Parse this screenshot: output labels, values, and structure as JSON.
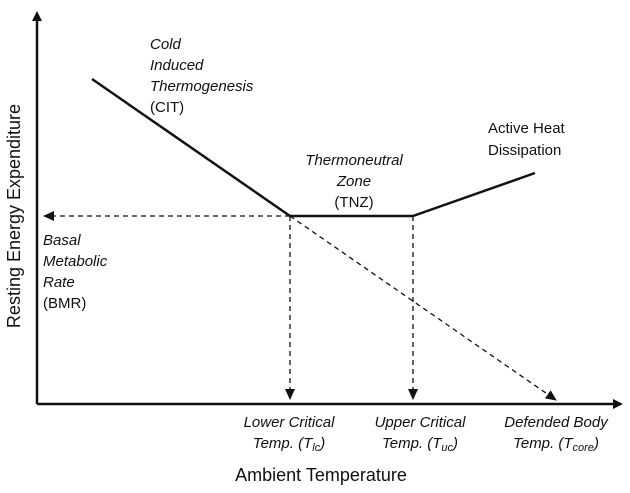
{
  "y_axis_label": "Resting Energy Expenditure",
  "x_axis_label": "Ambient Temperature",
  "cit": {
    "line1": "Cold",
    "line2": "Induced",
    "line3": "Thermogenesis",
    "abbr": "(CIT)"
  },
  "tnz": {
    "line1": "Thermoneutral",
    "line2": "Zone",
    "abbr": "(TNZ)"
  },
  "heat": {
    "line1": "Active Heat",
    "line2": "Dissipation"
  },
  "bmr": {
    "line1": "Basal",
    "line2": "Metabolic",
    "line3": "Rate",
    "abbr": "(BMR)"
  },
  "lower": {
    "line1": "Lower Critical",
    "prefix": "Temp. (",
    "var": "T",
    "sub": "lc",
    "suffix": ")"
  },
  "upper": {
    "line1": "Upper Critical",
    "prefix": "Temp. (",
    "var": "T",
    "sub": "uc",
    "suffix": ")"
  },
  "core": {
    "line1": "Defended Body",
    "prefix": "Temp. (",
    "var": "T",
    "sub": "core",
    "suffix": ")"
  },
  "colors": {
    "stroke": "#111111",
    "background": "#ffffff"
  }
}
